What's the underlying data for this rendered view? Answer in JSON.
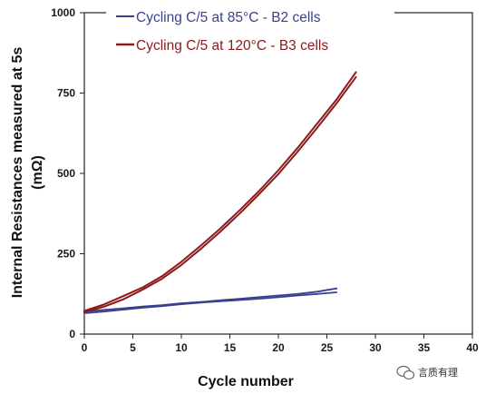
{
  "chart_data": {
    "type": "line",
    "xlabel": "Cycle number",
    "ylabel_line1": "Internal Resistances measured at 5s",
    "ylabel_line2": "(mΩ)",
    "xlim": [
      0,
      40
    ],
    "ylim": [
      0,
      1000
    ],
    "xticks": [
      0,
      5,
      10,
      15,
      20,
      25,
      30,
      35,
      40
    ],
    "yticks": [
      0,
      250,
      500,
      750,
      1000
    ],
    "grid": false,
    "legend_position": "top",
    "series": [
      {
        "name": "Cycling C/5 at 85°C - B2 cells",
        "color": "#3b3f8f",
        "lines": [
          {
            "x": [
              0,
              2,
              4,
              6,
              8,
              10,
              12,
              14,
              16,
              18,
              20,
              22,
              24,
              26
            ],
            "y": [
              70,
              75,
              80,
              86,
              90,
              96,
              100,
              105,
              110,
              115,
              120,
              125,
              132,
              142
            ]
          },
          {
            "x": [
              0,
              2,
              4,
              6,
              8,
              10,
              12,
              14,
              16,
              18,
              20,
              22,
              24,
              26
            ],
            "y": [
              65,
              70,
              76,
              82,
              87,
              93,
              98,
              102,
              106,
              110,
              115,
              120,
              125,
              130
            ]
          }
        ]
      },
      {
        "name": "Cycling C/5 at 120°C - B3 cells",
        "color": "#8b1a1a",
        "lines": [
          {
            "x": [
              0,
              2,
              4,
              6,
              8,
              10,
              12,
              14,
              16,
              18,
              20,
              22,
              24,
              26,
              28
            ],
            "y": [
              72,
              92,
              118,
              145,
              180,
              225,
              275,
              328,
              385,
              445,
              510,
              580,
              655,
              730,
              815
            ]
          },
          {
            "x": [
              0,
              2,
              4,
              6,
              8,
              10,
              12,
              14,
              16,
              18,
              20,
              22,
              24,
              26,
              28
            ],
            "y": [
              68,
              85,
              108,
              138,
              172,
              215,
              265,
              318,
              375,
              435,
              498,
              568,
              642,
              718,
              800
            ]
          }
        ]
      }
    ]
  },
  "watermark": {
    "text": "言质有理",
    "icon": "wechat-icon"
  }
}
